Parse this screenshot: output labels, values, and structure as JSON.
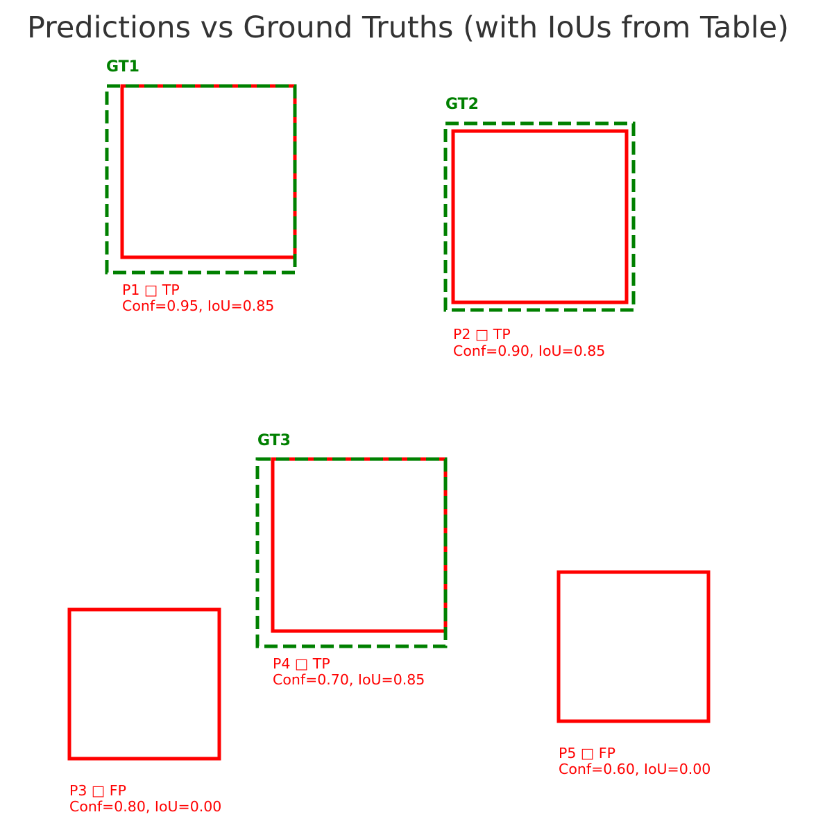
{
  "title": "Predictions vs Ground Truths (with IoUs from Table)",
  "colors": {
    "ground_truth": "#008000",
    "prediction": "#ff0000",
    "title": "#333333",
    "background": "#ffffff"
  },
  "ground_truths": [
    {
      "id": "gt1",
      "label": "GT1"
    },
    {
      "id": "gt2",
      "label": "GT2"
    },
    {
      "id": "gt3",
      "label": "GT3"
    }
  ],
  "predictions": [
    {
      "id": "p1",
      "line1": "P1 □ TP",
      "line2": "Conf=0.95, IoU=0.85",
      "status": "TP",
      "confidence": 0.95,
      "iou": 0.85
    },
    {
      "id": "p2",
      "line1": "P2 □ TP",
      "line2": "Conf=0.90, IoU=0.85",
      "status": "TP",
      "confidence": 0.9,
      "iou": 0.85
    },
    {
      "id": "p3",
      "line1": "P3 □ FP",
      "line2": "Conf=0.80, IoU=0.00",
      "status": "FP",
      "confidence": 0.8,
      "iou": 0.0
    },
    {
      "id": "p4",
      "line1": "P4 □ TP",
      "line2": "Conf=0.70, IoU=0.85",
      "status": "TP",
      "confidence": 0.7,
      "iou": 0.85
    },
    {
      "id": "p5",
      "line1": "P5 □ FP",
      "line2": "Conf=0.60, IoU=0.00",
      "status": "FP",
      "confidence": 0.6,
      "iou": 0.0
    }
  ]
}
